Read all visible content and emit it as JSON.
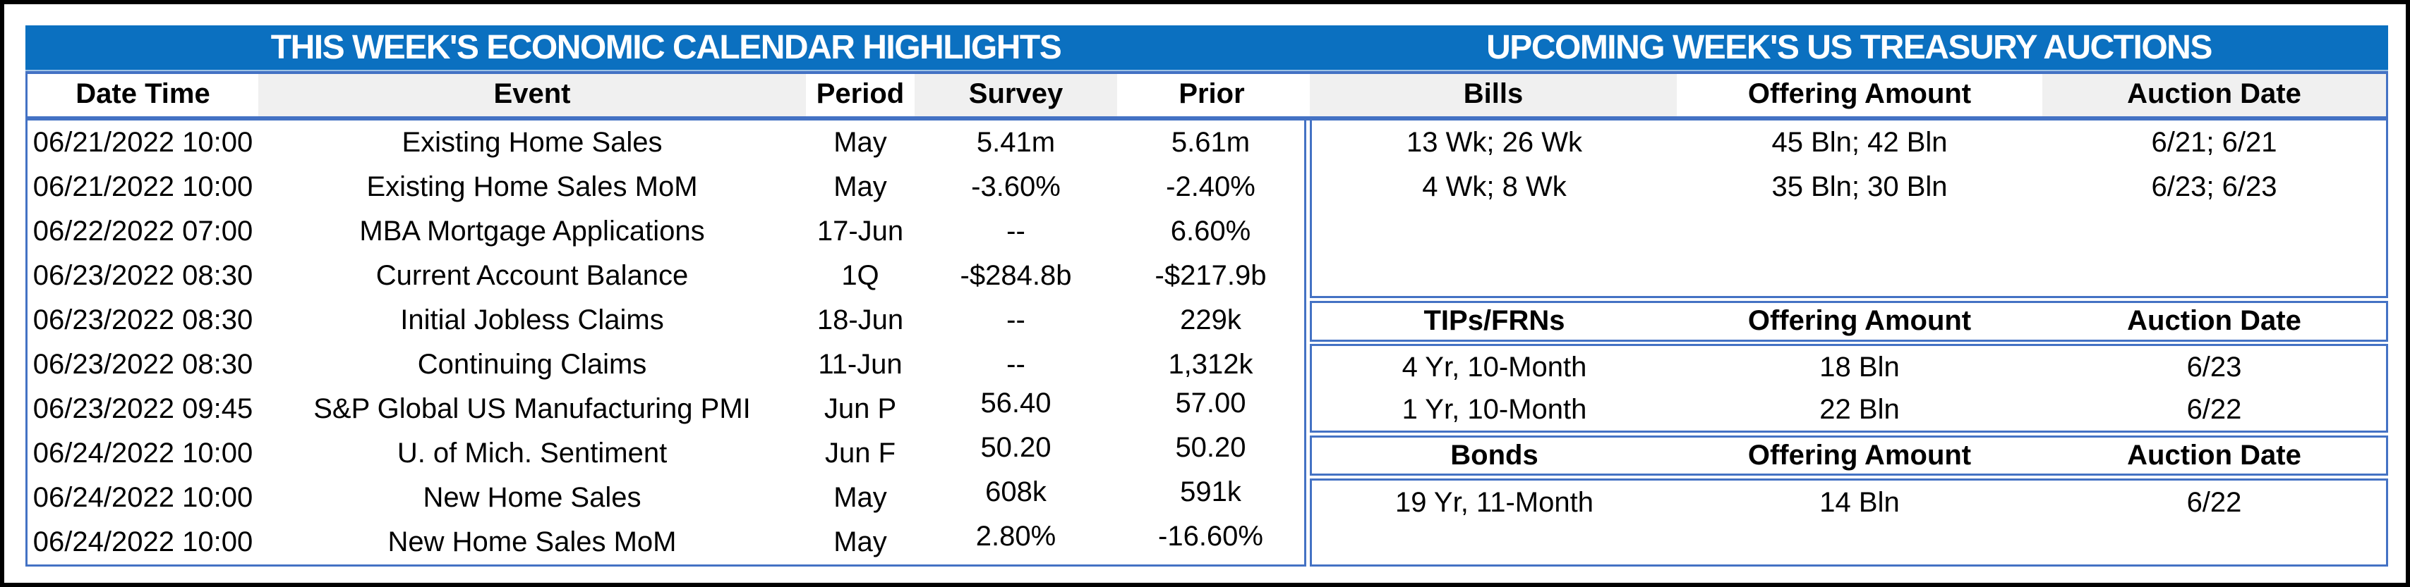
{
  "colors": {
    "title_bar_blue": "#0b70c0",
    "table_border_blue": "#4472c4",
    "column_stripe_gray": "#f0f0f0",
    "outer_frame_black": "#000000",
    "title_text": "#ffffff",
    "body_text": "#000000"
  },
  "left_table": {
    "title": "THIS WEEK'S ECONOMIC CALENDAR HIGHLIGHTS",
    "columns": [
      "Date Time",
      "Event",
      "Period",
      "Survey",
      "Prior"
    ],
    "rows": [
      [
        "06/21/2022 10:00",
        "Existing Home Sales",
        "May",
        "5.41m",
        "5.61m"
      ],
      [
        "06/21/2022 10:00",
        "Existing Home Sales MoM",
        "May",
        "-3.60%",
        "-2.40%"
      ],
      [
        "06/22/2022 07:00",
        "MBA Mortgage Applications",
        "17-Jun",
        "--",
        "6.60%"
      ],
      [
        "06/23/2022 08:30",
        "Current Account Balance",
        "1Q",
        "-$284.8b",
        "-$217.9b"
      ],
      [
        "06/23/2022 08:30",
        "Initial Jobless Claims",
        "18-Jun",
        "--",
        "229k"
      ],
      [
        "06/23/2022 08:30",
        "Continuing Claims",
        "11-Jun",
        "--",
        "1,312k"
      ],
      [
        "06/23/2022 09:45",
        "S&P Global US Manufacturing PMI",
        "Jun P",
        "56.40",
        "57.00"
      ],
      [
        "06/24/2022 10:00",
        "U. of Mich. Sentiment",
        "Jun F",
        "50.20",
        "50.20"
      ],
      [
        "06/24/2022 10:00",
        "New Home Sales",
        "May",
        "608k",
        "591k"
      ],
      [
        "06/24/2022 10:00",
        "New Home Sales MoM",
        "May",
        "2.80%",
        "-16.60%"
      ]
    ]
  },
  "right_table": {
    "title": "UPCOMING WEEK'S US TREASURY AUCTIONS",
    "sections": [
      {
        "header": [
          "Bills",
          "Offering Amount",
          "Auction Date"
        ],
        "rows": [
          [
            "13 Wk; 26 Wk",
            "45 Bln; 42 Bln",
            "6/21; 6/21"
          ],
          [
            "4 Wk; 8 Wk",
            "35 Bln; 30 Bln",
            "6/23; 6/23"
          ]
        ]
      },
      {
        "header": [
          "TIPs/FRNs",
          "Offering Amount",
          "Auction Date"
        ],
        "rows": [
          [
            "4 Yr, 10-Month",
            "18 Bln",
            "6/23"
          ],
          [
            "1 Yr, 10-Month",
            "22 Bln",
            "6/22"
          ]
        ]
      },
      {
        "header": [
          "Bonds",
          "Offering Amount",
          "Auction Date"
        ],
        "rows": [
          [
            "19 Yr, 11-Month",
            "14 Bln",
            "6/22"
          ]
        ]
      }
    ]
  }
}
